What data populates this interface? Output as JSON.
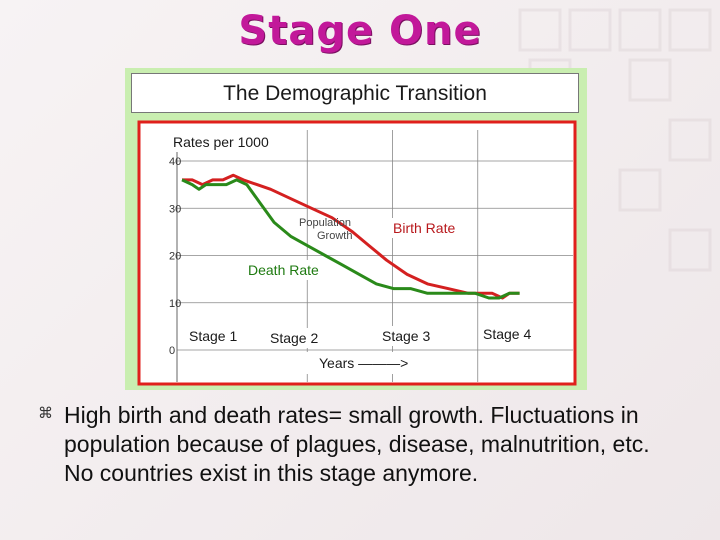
{
  "slide": {
    "title": "Stage One",
    "bullet_icon": "command-icon",
    "bullet_text": "High birth and death rates= small growth. Fluctuations  in population because of plagues, disease, malnutrition, etc.  No countries exist in this stage anymore."
  },
  "colors": {
    "title": "#c2189a",
    "birth": "#d42020",
    "death": "#2a8a1a",
    "frame": "#e0201c"
  },
  "chart_data": {
    "type": "line",
    "title": "The Demographic Transition",
    "ylabel": "Rates per 1000",
    "xlabel": "Years ———>",
    "ylim": [
      0,
      40
    ],
    "xlim": [
      0,
      100
    ],
    "yticks": [
      0,
      10,
      20,
      30,
      40
    ],
    "grid": true,
    "series": [
      {
        "name": "Birth Rate",
        "color": "#d42020",
        "points": [
          [
            0,
            36
          ],
          [
            3,
            36
          ],
          [
            6,
            35
          ],
          [
            9,
            36
          ],
          [
            12,
            36
          ],
          [
            15,
            37
          ],
          [
            18,
            36
          ],
          [
            22,
            35
          ],
          [
            26,
            34
          ],
          [
            32,
            32
          ],
          [
            38,
            30
          ],
          [
            44,
            28
          ],
          [
            50,
            25
          ],
          [
            55,
            22
          ],
          [
            60,
            19
          ],
          [
            66,
            16
          ],
          [
            72,
            14
          ],
          [
            78,
            13
          ],
          [
            84,
            12
          ],
          [
            88,
            12
          ],
          [
            91,
            12
          ],
          [
            94,
            11
          ],
          [
            96,
            12
          ],
          [
            99,
            12
          ]
        ]
      },
      {
        "name": "Death Rate",
        "color": "#2a8a1a",
        "points": [
          [
            0,
            36
          ],
          [
            3,
            35
          ],
          [
            5,
            34
          ],
          [
            7,
            35
          ],
          [
            9,
            35
          ],
          [
            11,
            35
          ],
          [
            13,
            35
          ],
          [
            16,
            36
          ],
          [
            19,
            35
          ],
          [
            23,
            31
          ],
          [
            27,
            27
          ],
          [
            32,
            24
          ],
          [
            37,
            22
          ],
          [
            42,
            20
          ],
          [
            47,
            18
          ],
          [
            52,
            16
          ],
          [
            57,
            14
          ],
          [
            62,
            13
          ],
          [
            67,
            13
          ],
          [
            72,
            12
          ],
          [
            77,
            12
          ],
          [
            82,
            12
          ],
          [
            86,
            12
          ],
          [
            90,
            11
          ],
          [
            93,
            11
          ],
          [
            96,
            12
          ],
          [
            99,
            12
          ]
        ]
      }
    ],
    "annotations": {
      "population_growth": "Population\nGrowth",
      "birth_rate": "Birth Rate",
      "death_rate": "Death Rate"
    },
    "stages": [
      "Stage 1",
      "Stage 2",
      "Stage 3",
      "Stage 4"
    ]
  }
}
